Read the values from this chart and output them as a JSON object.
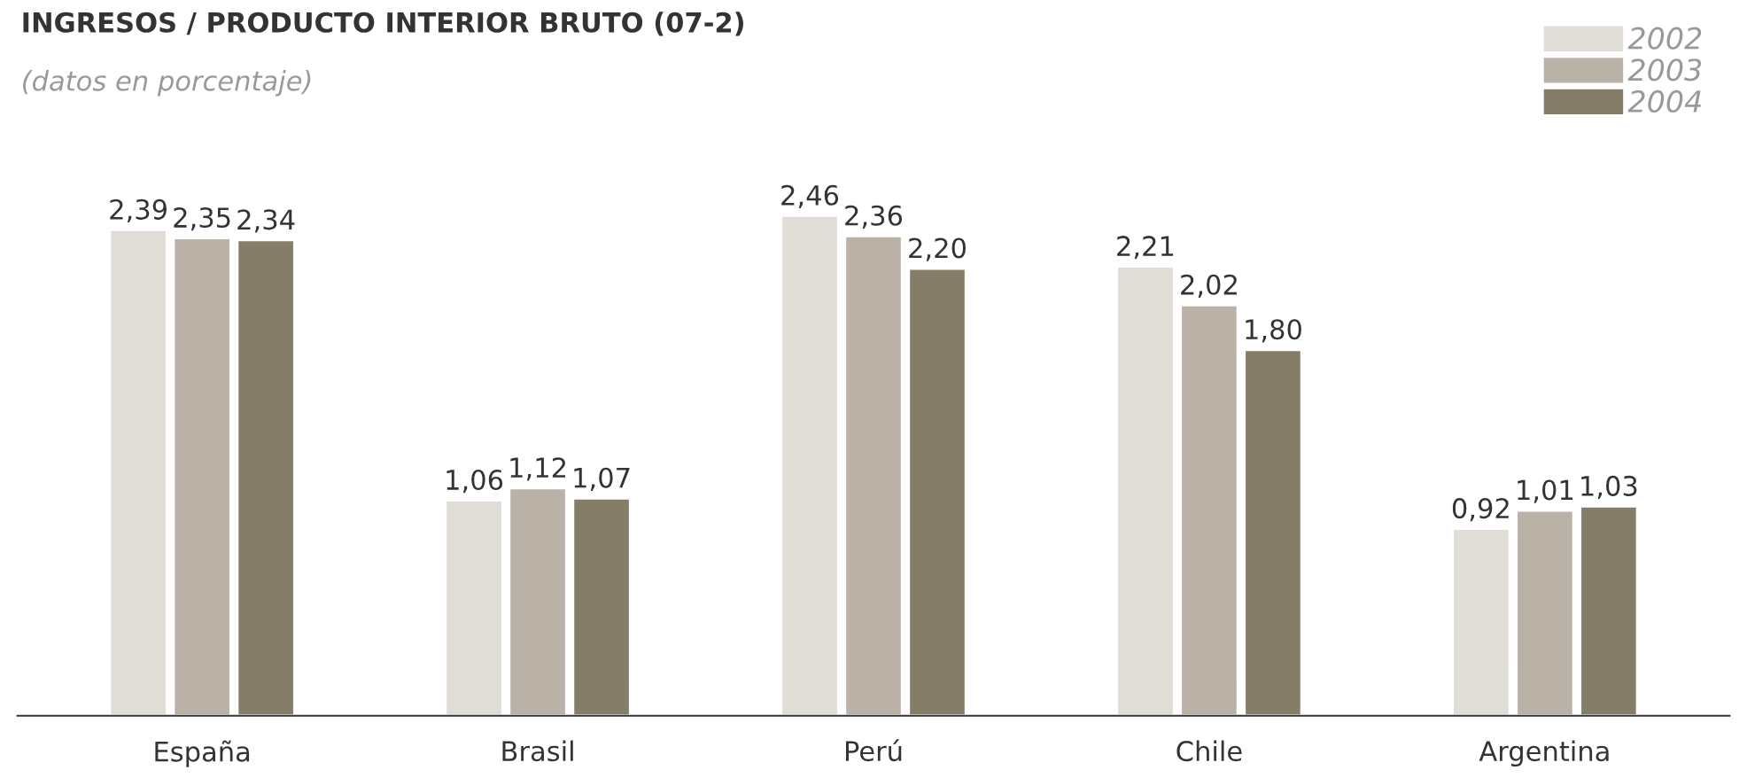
{
  "chart_data": {
    "type": "bar",
    "title": "INGRESOS / PRODUCTO INTERIOR BRUTO (07-2)",
    "subtitle": "(datos en porcentaje)",
    "categories": [
      "España",
      "Brasil",
      "Perú",
      "Chile",
      "Argentina"
    ],
    "series": [
      {
        "name": "2002",
        "color": "#e0dcd6",
        "values": [
          2.39,
          1.06,
          2.46,
          2.21,
          0.92
        ],
        "value_labels": [
          "2,39",
          "1,06",
          "2,46",
          "2,21",
          "0,92"
        ]
      },
      {
        "name": "2003",
        "color": "#bab2a6",
        "values": [
          2.35,
          1.12,
          2.36,
          2.02,
          1.01
        ],
        "value_labels": [
          "2,35",
          "1,12",
          "2,36",
          "2,02",
          "1,01"
        ]
      },
      {
        "name": "2004",
        "color": "#857d68",
        "values": [
          2.34,
          1.07,
          2.2,
          1.8,
          1.03
        ],
        "value_labels": [
          "2,34",
          "1,07",
          "2,20",
          "1,80",
          "1,03"
        ]
      }
    ],
    "legend": "top right",
    "grid": false
  }
}
